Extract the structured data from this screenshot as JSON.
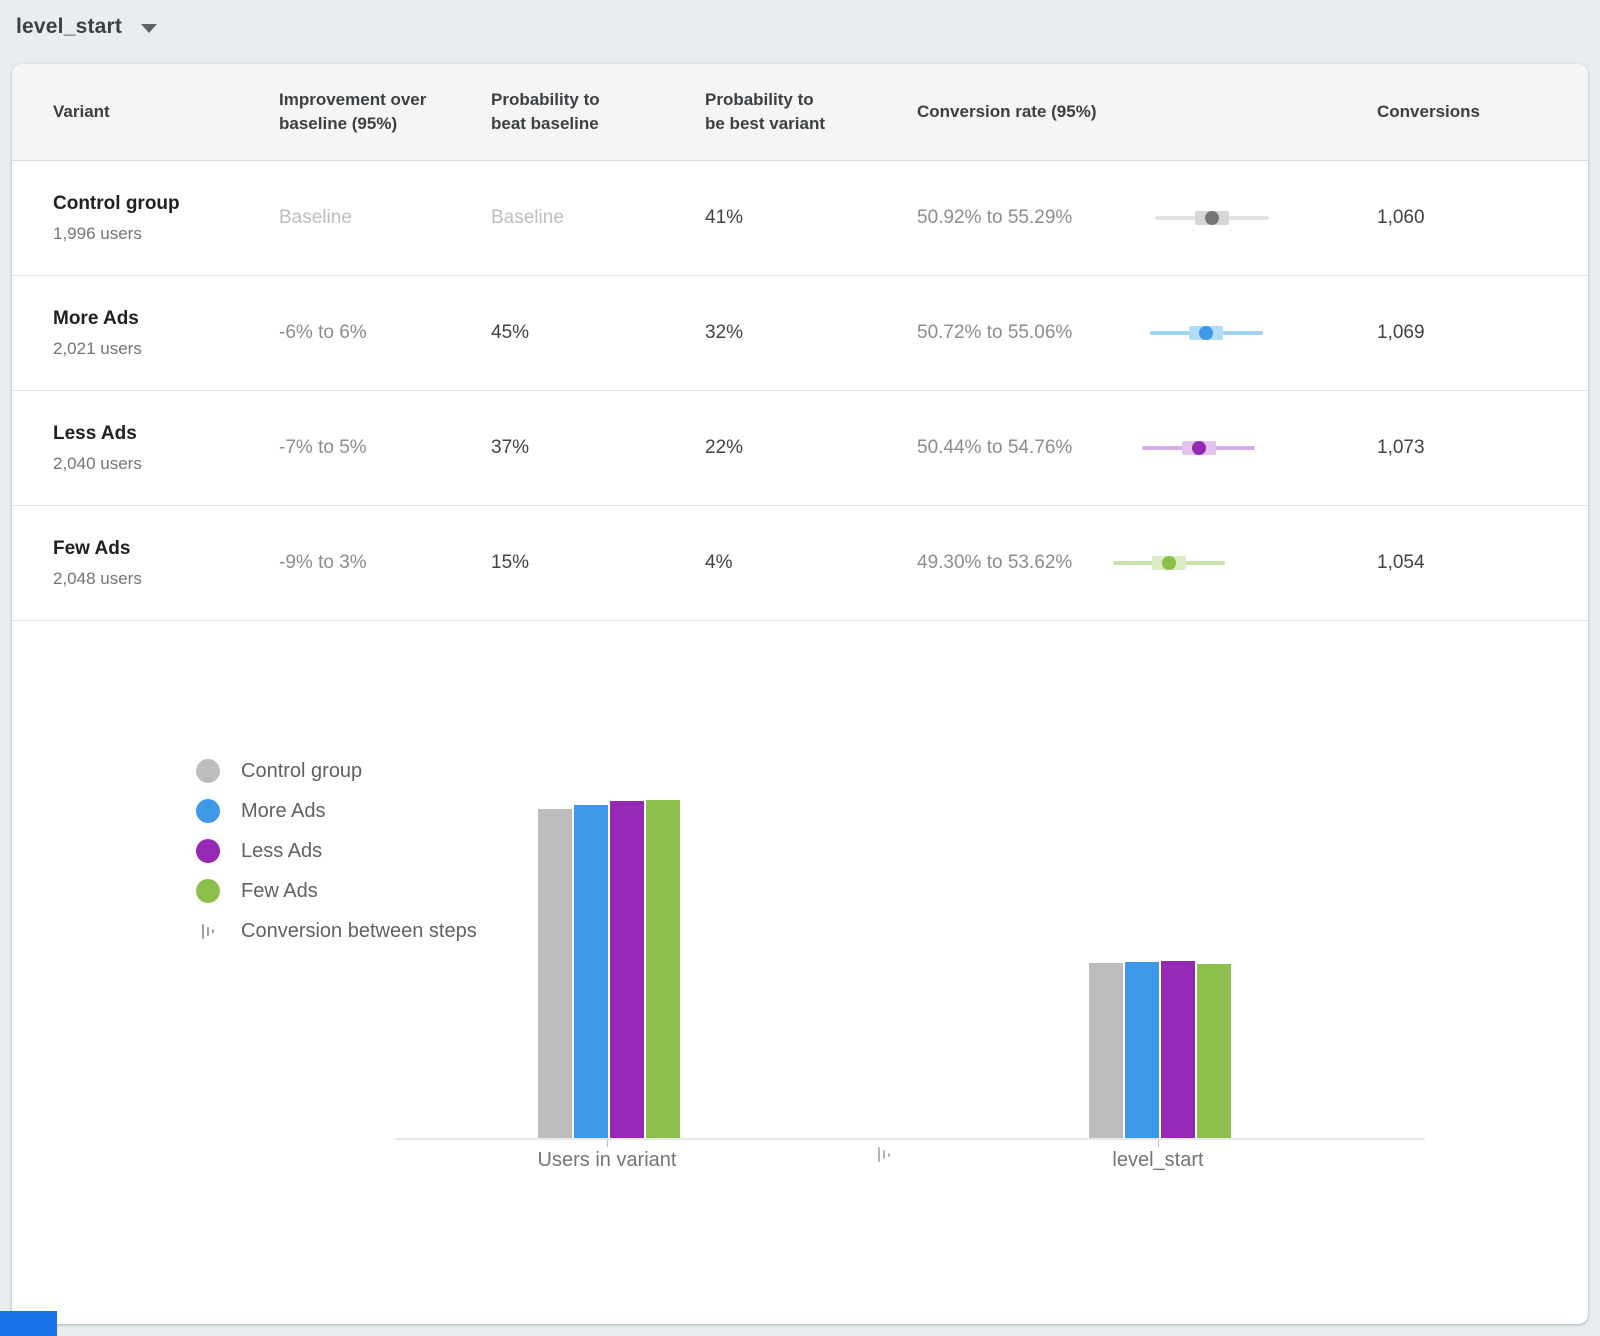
{
  "page": {
    "background": "#e8edf0"
  },
  "toolbar": {
    "metric_selector": {
      "label": "level_start",
      "icon": "caret-down-icon"
    }
  },
  "table": {
    "columns": [
      "Variant",
      "Improvement over baseline (95%)",
      "Probability to beat baseline",
      "Probability to be best variant",
      "Conversion rate (95%)",
      "Conversions"
    ],
    "rows": [
      {
        "variant": "Control group",
        "users": "1,996 users",
        "improvement": "Baseline",
        "probability_beat_baseline": "Baseline",
        "probability_best_variant": "41%",
        "conversion_rate_text": "50.92% to 55.29%",
        "conversion_rate_interval": {
          "low_pct": 50.92,
          "high_pct": 55.29
        },
        "conversions": "1,060",
        "colors": {
          "dot": "#757575",
          "band": "#d6d6d6",
          "line": "#e1e1e1"
        }
      },
      {
        "variant": "More Ads",
        "users": "2,021 users",
        "improvement": "-6% to 6%",
        "probability_beat_baseline": "45%",
        "probability_best_variant": "32%",
        "conversion_rate_text": "50.72% to 55.06%",
        "conversion_rate_interval": {
          "low_pct": 50.72,
          "high_pct": 55.06
        },
        "conversions": "1,069",
        "colors": {
          "dot": "#3d98e8",
          "band": "#b3dcf7",
          "line": "#a2d3f5"
        }
      },
      {
        "variant": "Less Ads",
        "users": "2,040 users",
        "improvement": "-7% to 5%",
        "probability_beat_baseline": "37%",
        "probability_best_variant": "22%",
        "conversion_rate_text": "50.44% to 54.76%",
        "conversion_rate_interval": {
          "low_pct": 50.44,
          "high_pct": 54.76
        },
        "conversions": "1,073",
        "colors": {
          "dot": "#9529b5",
          "band": "#e2c4ee",
          "line": "#d8ace8"
        }
      },
      {
        "variant": "Few Ads",
        "users": "2,048 users",
        "improvement": "-9% to 3%",
        "probability_beat_baseline": "15%",
        "probability_best_variant": "4%",
        "conversion_rate_text": "49.30% to 53.62%",
        "conversion_rate_interval": {
          "low_pct": 49.3,
          "high_pct": 53.62
        },
        "conversions": "1,054",
        "colors": {
          "dot": "#8dbf4d",
          "band": "#dcecc3",
          "line": "#c9e3a9"
        }
      }
    ]
  },
  "chart_data": {
    "type": "bar",
    "categories": [
      "Users in variant",
      "level_start"
    ],
    "series": [
      {
        "name": "Control group",
        "color": "#bdbdbd",
        "values": [
          1996,
          1060
        ]
      },
      {
        "name": "More Ads",
        "color": "#3d98e8",
        "values": [
          2021,
          1069
        ]
      },
      {
        "name": "Less Ads",
        "color": "#9529b5",
        "values": [
          2040,
          1073
        ]
      },
      {
        "name": "Few Ads",
        "color": "#8dbf4d",
        "values": [
          2048,
          1054
        ]
      }
    ],
    "legend_extra": "Conversion between steps",
    "legend_position": "left",
    "ylim": [
      0,
      2150
    ],
    "grid": false,
    "y_axis_visible": false
  },
  "scrollbar": {
    "color": "#1a73e8"
  }
}
